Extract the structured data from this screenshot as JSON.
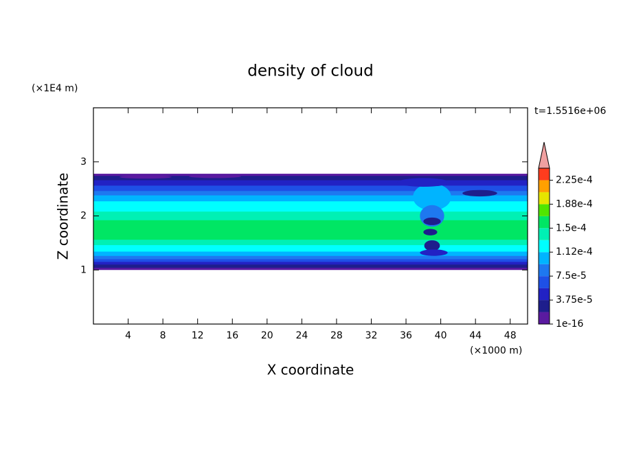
{
  "chart_data": {
    "type": "contour",
    "title": "density of cloud",
    "x_label": "X coordinate",
    "y_label": "Z coordinate",
    "x_unit": "(×1000 m)",
    "y_unit": "(×1E4 m)",
    "time_label": "t=1.5516e+06",
    "xlim": [
      0,
      50
    ],
    "xticks": [
      4,
      8,
      12,
      16,
      20,
      24,
      28,
      32,
      36,
      40,
      44,
      48
    ],
    "ylim": [
      0,
      4
    ],
    "yticks": [
      1,
      2,
      3
    ],
    "colorbar": {
      "clim": [
        1e-16,
        0.00024375
      ],
      "levels": [
        1e-16,
        1.875e-05,
        3.75e-05,
        5.625e-05,
        7.5e-05,
        9.375e-05,
        0.0001125,
        0.00013125,
        0.00015,
        0.00016875,
        0.0001875,
        0.00020625,
        0.000225,
        0.00024375
      ],
      "colors": [
        "#5a1aa0",
        "#1e1e8c",
        "#2222c4",
        "#1e50e6",
        "#1e78f0",
        "#00b4ff",
        "#00ffff",
        "#00f0b4",
        "#00e664",
        "#50e600",
        "#e6e600",
        "#ffa000",
        "#ff3c1e"
      ],
      "extend_color": "#f0a0a0",
      "ticks": [
        {
          "value": 1e-16,
          "label": "1e-16"
        },
        {
          "value": 3.75e-05,
          "label": "3.75e-5"
        },
        {
          "value": 7.5e-05,
          "label": "7.5e-5"
        },
        {
          "value": 0.0001125,
          "label": "1.12e-4"
        },
        {
          "value": 0.00015,
          "label": "1.5e-4"
        },
        {
          "value": 0.0001875,
          "label": "1.88e-4"
        },
        {
          "value": 0.000225,
          "label": "2.25e-4"
        }
      ]
    }
  }
}
